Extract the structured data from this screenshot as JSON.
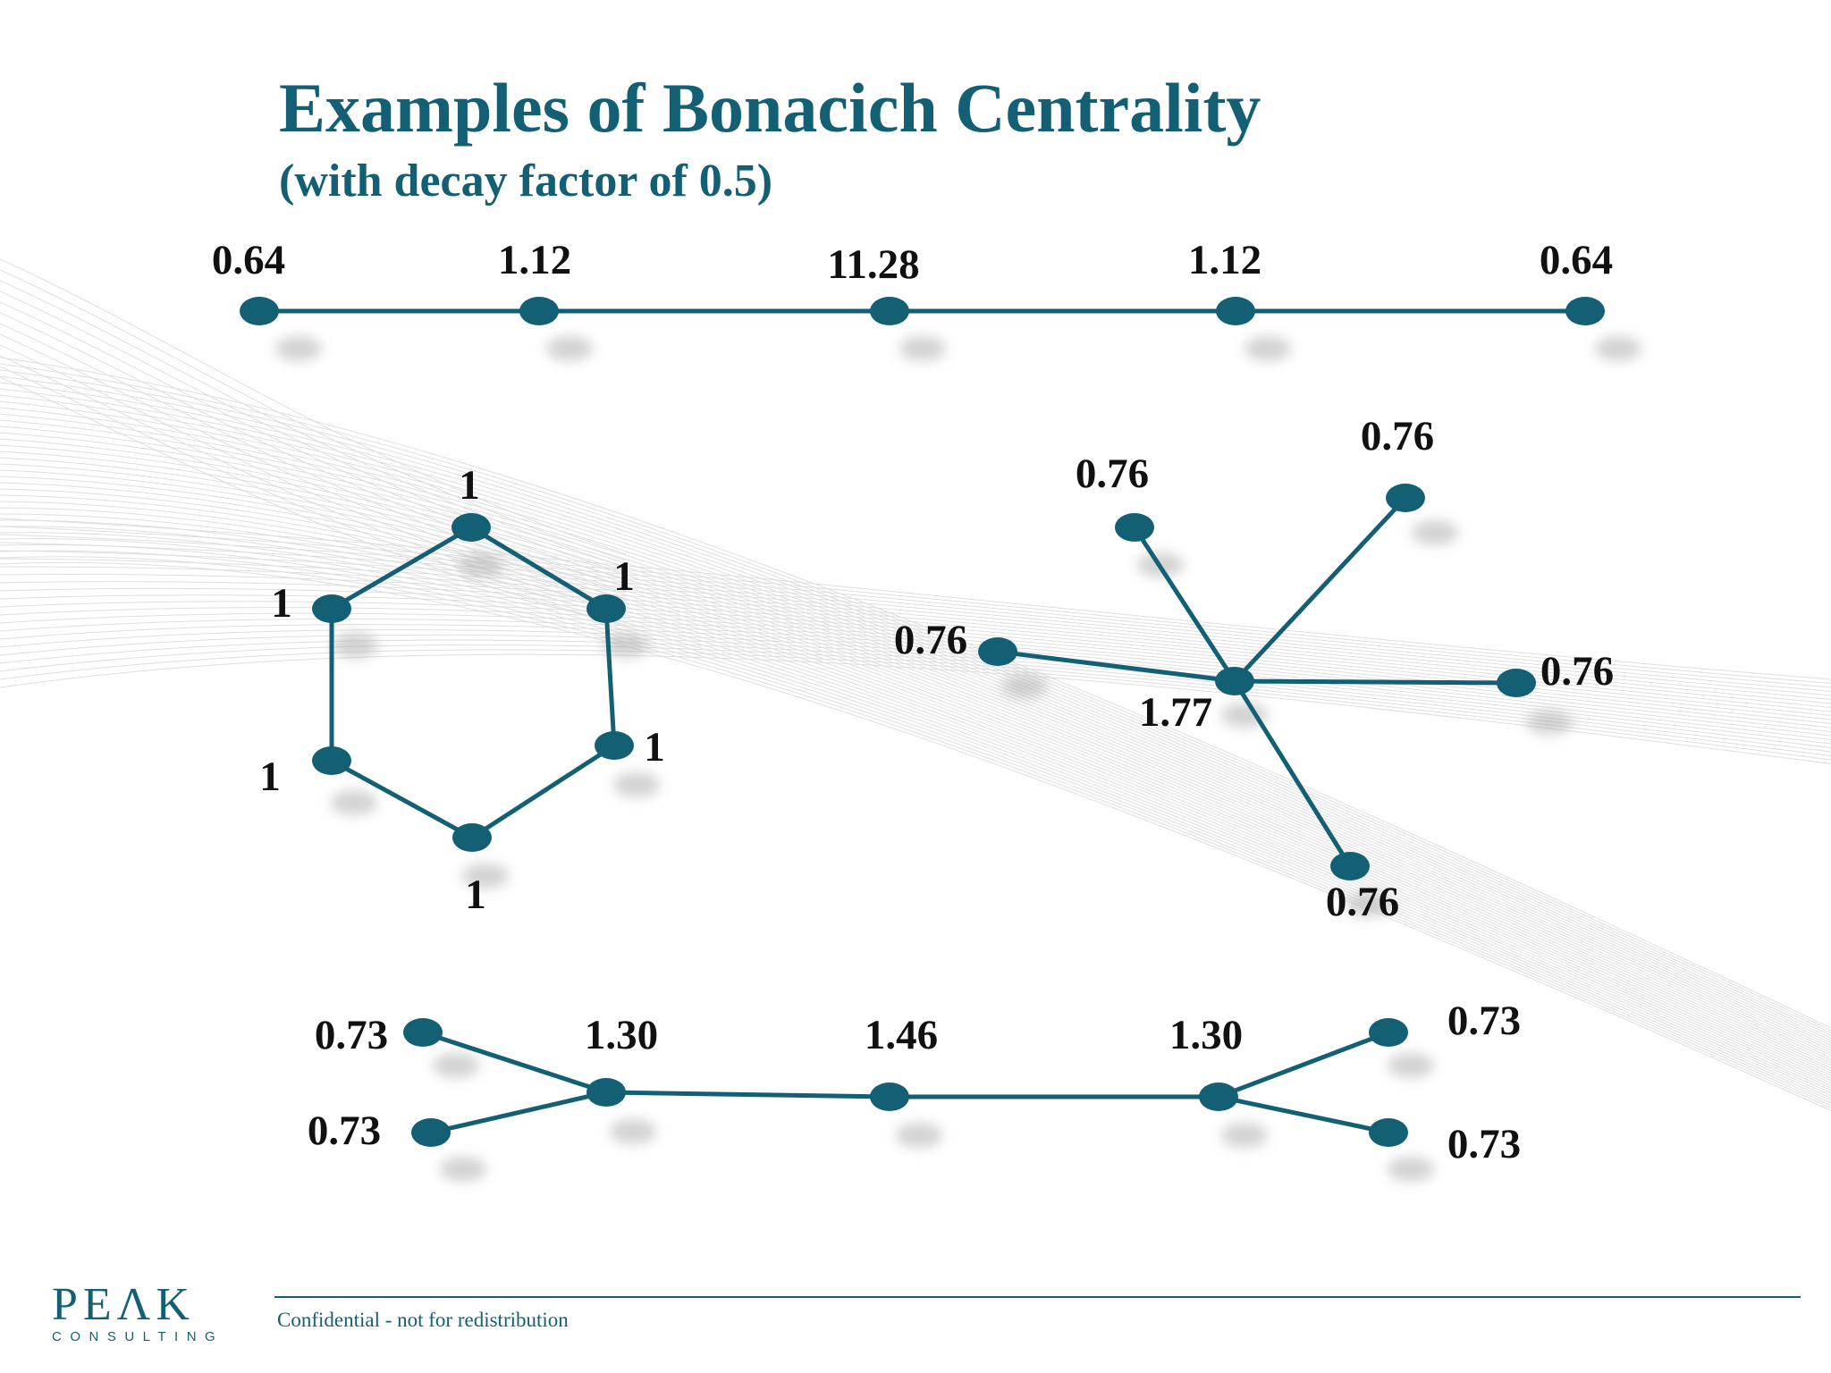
{
  "slide": {
    "title": "Examples of Bonacich Centrality",
    "subtitle": "(with decay factor of 0.5)"
  },
  "colors": {
    "accent": "#135f74",
    "text": "#111111",
    "background": "#ffffff"
  },
  "diagrams": {
    "line_graph": {
      "labels": [
        "0.64",
        "1.12",
        "11.28",
        "1.12",
        "0.64"
      ]
    },
    "hexagon_graph": {
      "labels": [
        "1",
        "1",
        "1",
        "1",
        "1",
        "1"
      ]
    },
    "star_graph": {
      "center": "1.77",
      "leaves": [
        "0.76",
        "0.76",
        "0.76",
        "0.76",
        "0.76"
      ]
    },
    "double_star_graph": {
      "leaves_left": [
        "0.73",
        "0.73"
      ],
      "path": [
        "1.30",
        "1.46",
        "1.30"
      ],
      "leaves_right": [
        "0.73",
        "0.73"
      ]
    }
  },
  "footer": {
    "logo_main": "PEΛK",
    "logo_sub": "CONSULTING",
    "confidential": "Confidential - not for redistribution"
  }
}
